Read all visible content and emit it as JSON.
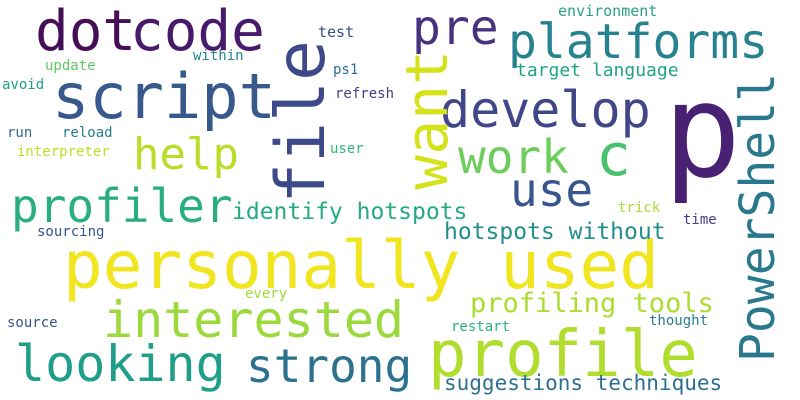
{
  "words": [
    {
      "text": "p",
      "color": "#482173"
    },
    {
      "text": "personally used",
      "color": "#f0e51f"
    },
    {
      "text": "profile",
      "color": "#b1dd2f"
    },
    {
      "text": "script",
      "color": "#38598c"
    },
    {
      "text": "code",
      "color": "#481a6c"
    },
    {
      "text": "dot",
      "color": "#440f56"
    },
    {
      "text": "platforms",
      "color": "#26828e"
    },
    {
      "text": "develop",
      "color": "#404688"
    },
    {
      "text": "file",
      "color": "#3e4989"
    },
    {
      "text": "want",
      "color": "#d5e21a"
    },
    {
      "text": "pre",
      "color": "#46327e"
    },
    {
      "text": "PowerShell",
      "color": "#2a788e"
    },
    {
      "text": "interested",
      "color": "#9bd93c"
    },
    {
      "text": "looking",
      "color": "#1f9e89"
    },
    {
      "text": "strong",
      "color": "#2c728e"
    },
    {
      "text": "profiler",
      "color": "#29af7f"
    },
    {
      "text": "help",
      "color": "#b8de29"
    },
    {
      "text": "work",
      "color": "#6ccd5a"
    },
    {
      "text": "c",
      "color": "#4ac16d"
    },
    {
      "text": "use",
      "color": "#39568c"
    },
    {
      "text": "profiling tools",
      "color": "#addc30"
    },
    {
      "text": "identify hotspots",
      "color": "#25ab82"
    },
    {
      "text": "hotspots without",
      "color": "#218f8d"
    },
    {
      "text": "suggestions techniques",
      "color": "#2d708e"
    },
    {
      "text": "target language",
      "color": "#20a486"
    },
    {
      "text": "environment",
      "color": "#2a9e89"
    },
    {
      "text": "test",
      "color": "#3d4d8a"
    },
    {
      "text": "within",
      "color": "#25858e"
    },
    {
      "text": "update",
      "color": "#5ec962"
    },
    {
      "text": "ps1",
      "color": "#2f6c8e"
    },
    {
      "text": "avoid",
      "color": "#1fa188"
    },
    {
      "text": "refresh",
      "color": "#433e85"
    },
    {
      "text": "run",
      "color": "#31688e"
    },
    {
      "text": "reload",
      "color": "#287d8e"
    },
    {
      "text": "interpreter",
      "color": "#c2df23"
    },
    {
      "text": "user",
      "color": "#35b779"
    },
    {
      "text": "trick",
      "color": "#a8db34"
    },
    {
      "text": "time",
      "color": "#424186"
    },
    {
      "text": "sourcing",
      "color": "#3a538b"
    },
    {
      "text": "every",
      "color": "#a0da39"
    },
    {
      "text": "source",
      "color": "#3b528b"
    },
    {
      "text": "restart",
      "color": "#2ab07f"
    },
    {
      "text": "thought",
      "color": "#277f8e"
    }
  ]
}
